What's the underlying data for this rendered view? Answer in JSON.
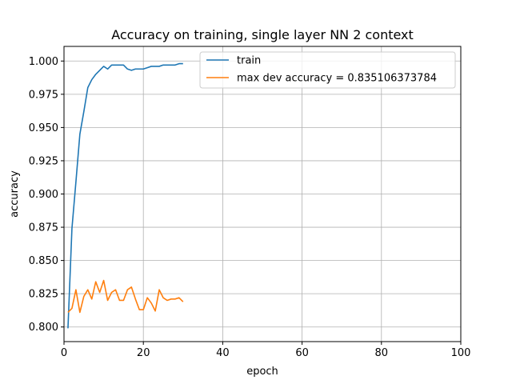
{
  "chart_data": {
    "type": "line",
    "title": "Accuracy on training, single layer NN 2 context",
    "xlabel": "epoch",
    "ylabel": "accuracy",
    "xlim": [
      0,
      100
    ],
    "ylim": [
      0.789,
      1.011
    ],
    "xticks": [
      0,
      20,
      40,
      60,
      80,
      100
    ],
    "xtick_labels": [
      "0",
      "20",
      "40",
      "60",
      "80",
      "100"
    ],
    "yticks": [
      0.8,
      0.825,
      0.85,
      0.875,
      0.9,
      0.925,
      0.95,
      0.975,
      1.0
    ],
    "ytick_labels": [
      "0.800",
      "0.825",
      "0.850",
      "0.875",
      "0.900",
      "0.925",
      "0.950",
      "0.975",
      "1.000"
    ],
    "grid": true,
    "legend_position": "top-right",
    "series": [
      {
        "name": "train",
        "color": "#1f77b4",
        "x": [
          1,
          2,
          3,
          4,
          5,
          6,
          7,
          8,
          9,
          10,
          11,
          12,
          13,
          14,
          15,
          16,
          17,
          18,
          19,
          20,
          21,
          22,
          23,
          24,
          25,
          26,
          27,
          28,
          29,
          30
        ],
        "values": [
          0.799,
          0.874,
          0.909,
          0.945,
          0.962,
          0.98,
          0.986,
          0.99,
          0.993,
          0.996,
          0.994,
          0.997,
          0.997,
          0.997,
          0.997,
          0.994,
          0.993,
          0.994,
          0.994,
          0.994,
          0.995,
          0.996,
          0.996,
          0.996,
          0.997,
          0.997,
          0.997,
          0.997,
          0.998,
          0.998
        ]
      },
      {
        "name": "max dev accuracy = 0.835106373784",
        "color": "#ff7f0e",
        "x": [
          1,
          2,
          3,
          4,
          5,
          6,
          7,
          8,
          9,
          10,
          11,
          12,
          13,
          14,
          15,
          16,
          17,
          18,
          19,
          20,
          21,
          22,
          23,
          24,
          25,
          26,
          27,
          28,
          29,
          30
        ],
        "values": [
          0.811,
          0.814,
          0.828,
          0.811,
          0.823,
          0.828,
          0.821,
          0.834,
          0.826,
          0.835,
          0.82,
          0.826,
          0.828,
          0.82,
          0.82,
          0.828,
          0.83,
          0.821,
          0.813,
          0.813,
          0.822,
          0.818,
          0.812,
          0.828,
          0.822,
          0.82,
          0.821,
          0.821,
          0.822,
          0.819
        ]
      }
    ]
  }
}
